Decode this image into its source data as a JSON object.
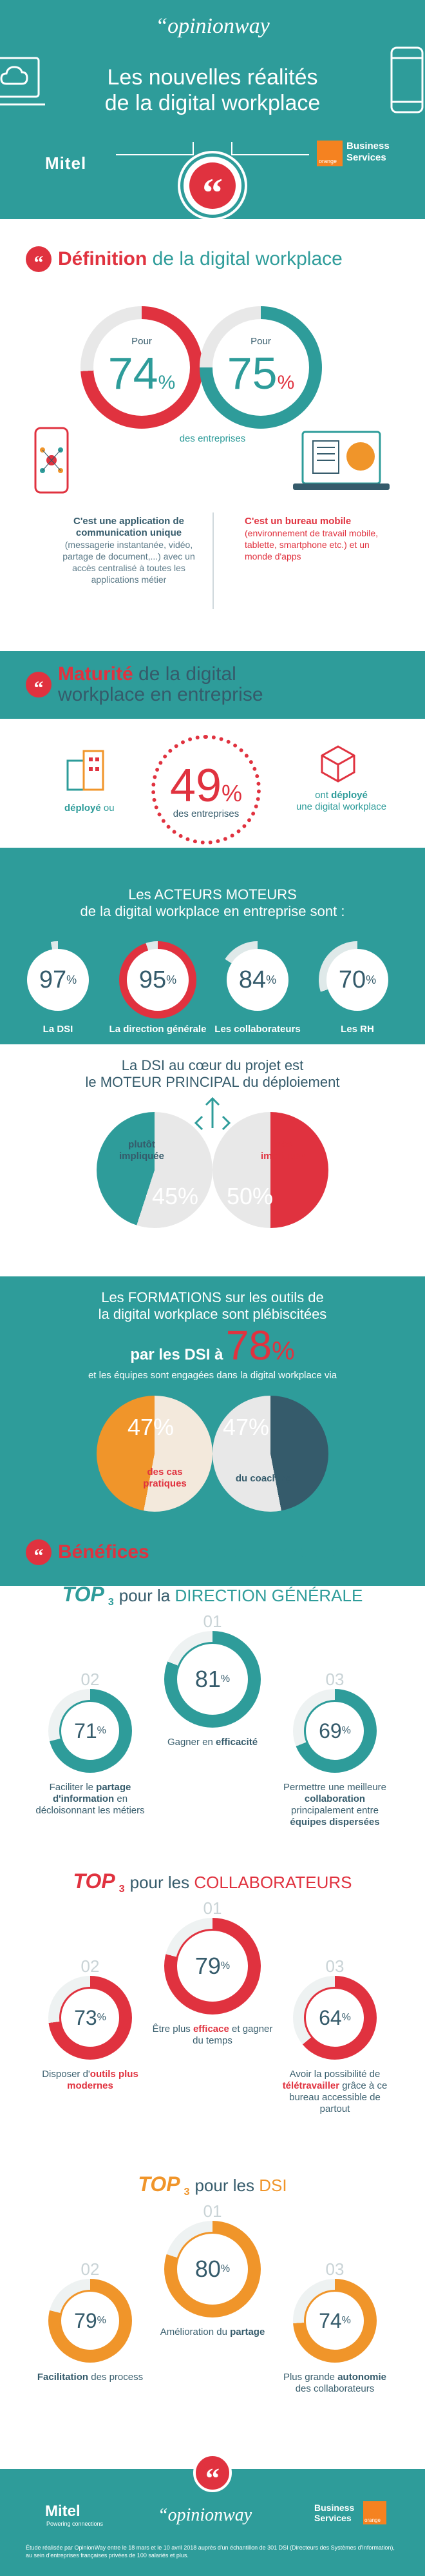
{
  "header": {
    "brand": "“opinionway",
    "title_line1": "Les nouvelles réalités",
    "title_line2": "de la digital workplace",
    "mitel": "Mitel",
    "orange": "orange",
    "business_services": "Business Services"
  },
  "definition": {
    "title_bold": "Définition",
    "title_rest": " de la digital workplace",
    "left_pour": "Pour",
    "left_value": "74",
    "left_pct": "%",
    "right_pour": "Pour",
    "right_value": "75",
    "right_pct": "%",
    "des_entreprises": "des entreprises",
    "left_bold": "C'est une application de communication unique",
    "left_text": "(messagerie instantanée, vidéo, partage de document,...) avec un accès centralisé à toutes les applications métier",
    "right_bold": "C'est un bureau mobile",
    "right_text": "(environnement de travail mobile, tablette, smartphone etc.) et un monde d'apps"
  },
  "maturite": {
    "title_bold": "Maturité",
    "title_rest": " de la digital",
    "title_line2": "workplace en entreprise",
    "value": "49",
    "pct": "%",
    "des_entreprises": "des entreprises",
    "left_bold": "déployé",
    "left_rest": " ou",
    "right_line1": "ont ",
    "right_bold": "déployé",
    "right_line2": "une digital workplace"
  },
  "acteurs": {
    "title_line1": "Les ACTEURS MOTEURS",
    "title_line2": "de la digital workplace en entreprise sont :",
    "items": [
      {
        "value": "97",
        "label": "La DSI"
      },
      {
        "value": "95",
        "label": "La direction générale"
      },
      {
        "value": "84",
        "label": "Les collaborateurs"
      },
      {
        "value": "70",
        "label": "Les RH"
      }
    ],
    "pct": "%"
  },
  "dsi": {
    "title_line1": "La DSI au cœur du projet est",
    "title_line2": "le MOTEUR PRINCIPAL du déploiement",
    "left_label": "plutôt impliquée",
    "left_value": "45%",
    "right_label": "très impliquée",
    "right_value": "50%"
  },
  "formations": {
    "title_line1": "Les FORMATIONS sur les outils de",
    "title_line2": "la digital workplace sont plébiscitées",
    "par_les_dsi": "par les DSI à",
    "value": "78",
    "pct": "%",
    "subtitle": "et les équipes sont engagées dans la digital workplace via",
    "left_value": "47%",
    "left_label": "des cas pratiques",
    "right_value": "47%",
    "right_label": "du coaching"
  },
  "benefices": {
    "title_bold": "Bénéfices",
    "title_rest": " de la digital workplace",
    "top": "TOP",
    "three": "3",
    "groups": [
      {
        "pour": "pour la ",
        "name": "DIRECTION GÉNÉRALE",
        "color": "#2e9c9a",
        "items": [
          {
            "rank": "02",
            "value": "71",
            "text_a": "Faciliter le ",
            "text_b": "partage d'information",
            "text_c": " en décloisonnant les métiers"
          },
          {
            "rank": "01",
            "value": "81",
            "text_a": "Gagner en ",
            "text_b": "efficacité",
            "text_c": ""
          },
          {
            "rank": "03",
            "value": "69",
            "text_a": "Permettre une meilleure ",
            "text_b": "collaboration",
            "text_c": " principalement entre ",
            "text_d": "équipes dispersées"
          }
        ]
      },
      {
        "pour": "pour les ",
        "name": "COLLABORATEURS",
        "color": "#e0323f",
        "items": [
          {
            "rank": "02",
            "value": "73",
            "text_a": "Disposer d'",
            "text_b": "outils plus modernes",
            "text_c": ""
          },
          {
            "rank": "01",
            "value": "79",
            "text_a": "Être plus ",
            "text_b": "efficace",
            "text_c": " et gagner du temps"
          },
          {
            "rank": "03",
            "value": "64",
            "text_a": "Avoir la possibilité de ",
            "text_b": "télétravailler",
            "text_c": " grâce à ce bureau accessible de partout"
          }
        ]
      },
      {
        "pour": "pour les ",
        "name": "DSI",
        "color": "#f0952a",
        "items": [
          {
            "rank": "02",
            "value": "79",
            "text_a": "",
            "text_b": "Facilitation",
            "text_c": " des process"
          },
          {
            "rank": "01",
            "value": "80",
            "text_a": "Amélioration du ",
            "text_b": "partage",
            "text_c": ""
          },
          {
            "rank": "03",
            "value": "74",
            "text_a": "Plus grande ",
            "text_b": "autonomie",
            "text_c": " des collaborateurs"
          }
        ]
      }
    ],
    "pct": "%"
  },
  "footer": {
    "mitel": "Mitel",
    "mitel_sub": "Powering connections",
    "opinionway": "“opinionway",
    "business_services": "Business Services",
    "orange": "orange",
    "note": "Étude réalisée par OpinionWay entre le 18 mars et le 10 avril 2018 auprès d'un échantillon de 301 DSI (Directeurs des Systèmes d'Information), au sein d'entreprises françaises privées de 100 salariés et plus."
  },
  "colors": {
    "teal": "#2e9c9a",
    "red": "#e0323f",
    "orange": "#f0952a",
    "dark": "#355b6b"
  }
}
